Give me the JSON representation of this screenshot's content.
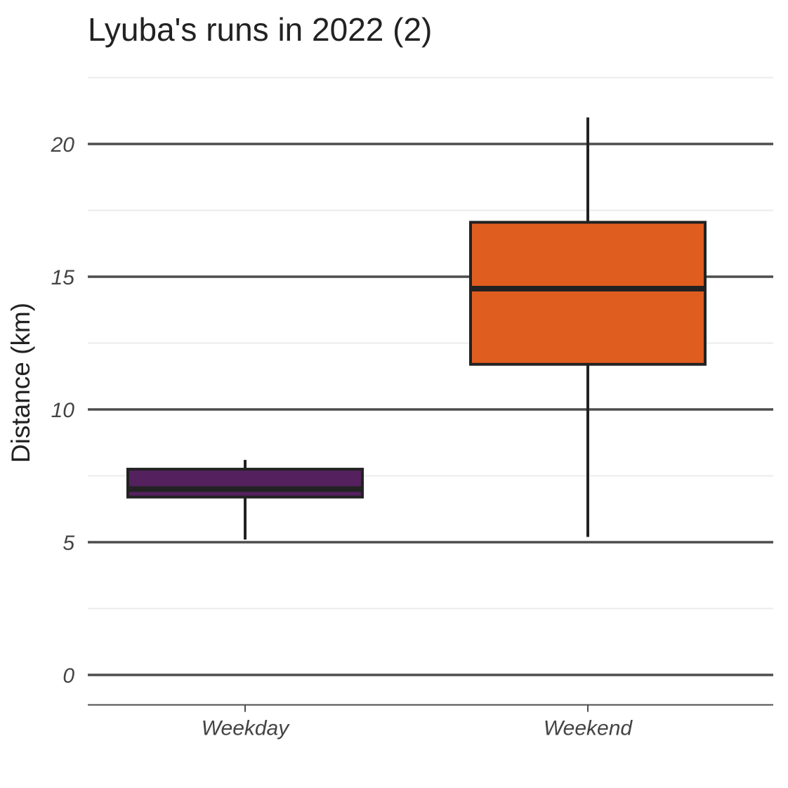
{
  "chart_data": {
    "type": "boxplot",
    "title": "Lyuba's runs in 2022 (2)",
    "xlabel": "",
    "ylabel": "Distance (km)",
    "ylim": [
      -1.1,
      22.5
    ],
    "yticks": [
      0,
      5,
      10,
      15,
      20
    ],
    "ytick_labels": [
      "0",
      "5",
      "10",
      "15",
      "20"
    ],
    "minor_yticks": [
      2.5,
      7.5,
      12.5,
      17.5,
      22.5
    ],
    "grid": true,
    "categories": [
      "Weekday",
      "Weekend"
    ],
    "boxes": [
      {
        "category": "Weekday",
        "min": 5.1,
        "q1": 6.7,
        "median": 7.0,
        "q3": 7.75,
        "max": 8.1,
        "color": "#54215e"
      },
      {
        "category": "Weekend",
        "min": 5.2,
        "q1": 11.7,
        "median": 14.55,
        "q3": 17.05,
        "max": 21.0,
        "color": "#e05d20"
      }
    ]
  }
}
